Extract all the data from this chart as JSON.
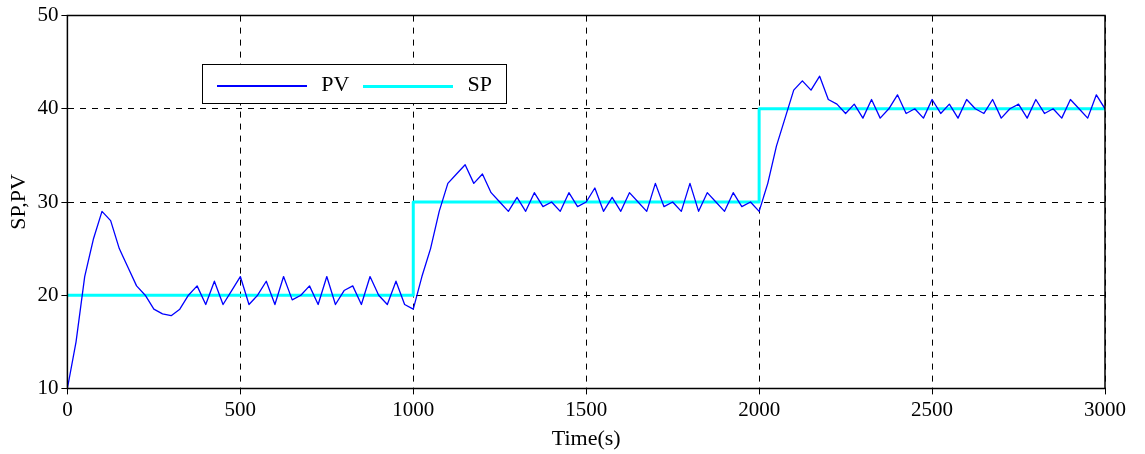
{
  "chart_data": {
    "type": "line",
    "xlabel": "Time(s)",
    "ylabel": "SP,PV",
    "xlim": [
      0,
      3000
    ],
    "ylim": [
      10,
      50
    ],
    "xticks": [
      0,
      500,
      1000,
      1500,
      2000,
      2500,
      3000
    ],
    "yticks": [
      10,
      20,
      30,
      40,
      50
    ],
    "grid": true,
    "legend": "top left",
    "marker": "none",
    "line_style": "solid",
    "series": [
      {
        "name": "PV",
        "color": "#0000ff",
        "x": [
          0,
          25,
          50,
          75,
          100,
          125,
          150,
          175,
          200,
          225,
          250,
          275,
          300,
          325,
          350,
          375,
          400,
          425,
          450,
          475,
          500,
          525,
          550,
          575,
          600,
          625,
          650,
          675,
          700,
          725,
          750,
          775,
          800,
          825,
          850,
          875,
          900,
          925,
          950,
          975,
          1000,
          1025,
          1050,
          1075,
          1100,
          1125,
          1150,
          1175,
          1200,
          1225,
          1250,
          1275,
          1300,
          1325,
          1350,
          1375,
          1400,
          1425,
          1450,
          1475,
          1500,
          1525,
          1550,
          1575,
          1600,
          1625,
          1650,
          1675,
          1700,
          1725,
          1750,
          1775,
          1800,
          1825,
          1850,
          1875,
          1900,
          1925,
          1950,
          1975,
          2000,
          2025,
          2050,
          2075,
          2100,
          2125,
          2150,
          2175,
          2200,
          2225,
          2250,
          2275,
          2300,
          2325,
          2350,
          2375,
          2400,
          2425,
          2450,
          2475,
          2500,
          2525,
          2550,
          2575,
          2600,
          2625,
          2650,
          2675,
          2700,
          2725,
          2750,
          2775,
          2800,
          2825,
          2850,
          2875,
          2900,
          2925,
          2950,
          2975,
          3000
        ],
        "values": [
          10,
          15,
          22,
          26,
          29,
          28,
          25,
          23,
          21,
          20,
          18.5,
          18,
          17.8,
          18.5,
          20,
          21,
          19,
          21.5,
          19,
          20.5,
          22,
          19,
          20,
          21.5,
          19,
          22,
          19.5,
          20,
          21,
          19,
          22,
          19,
          20.5,
          21,
          19,
          22,
          20,
          19,
          21.5,
          19,
          18.5,
          22,
          25,
          29,
          32,
          33,
          34,
          32,
          33,
          31,
          30,
          29,
          30.5,
          29,
          31,
          29.5,
          30,
          29,
          31,
          29.5,
          30,
          31.5,
          29,
          30.5,
          29,
          31,
          30,
          29,
          32,
          29.5,
          30,
          29,
          32,
          29,
          31,
          30,
          29,
          31,
          29.5,
          30,
          29,
          32,
          36,
          39,
          42,
          43,
          42,
          43.5,
          41,
          40.5,
          39.5,
          40.5,
          39,
          41,
          39,
          40,
          41.5,
          39.5,
          40,
          39,
          41,
          39.5,
          40.5,
          39,
          41,
          40,
          39.5,
          41,
          39,
          40,
          40.5,
          39,
          41,
          39.5,
          40,
          39,
          41,
          40,
          39,
          41.5,
          40
        ]
      },
      {
        "name": "SP",
        "color": "#00ffff",
        "x": [
          0,
          1000,
          1000,
          2000,
          2000,
          3000
        ],
        "values": [
          20,
          20,
          30,
          30,
          40,
          40
        ]
      }
    ]
  }
}
